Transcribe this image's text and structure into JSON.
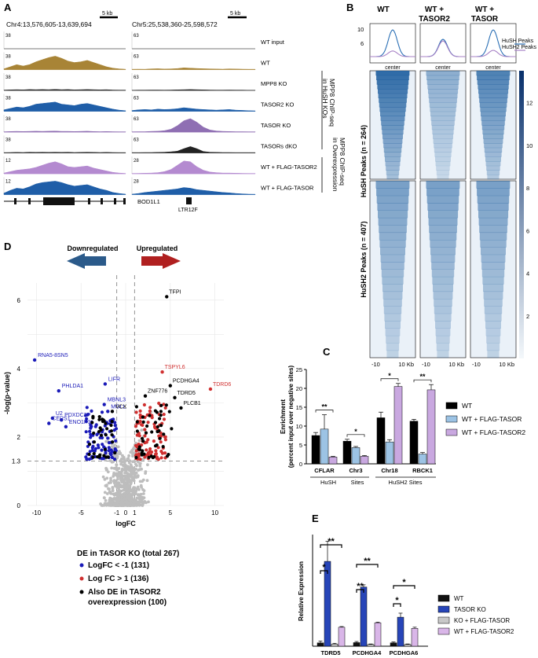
{
  "panel_letters": {
    "a": "A",
    "b": "B",
    "c": "C",
    "d": "D",
    "e": "E"
  },
  "panel_a": {
    "locus1": "Chr4:13,576,605-13,639,694",
    "locus2": "Chr5:25,538,360-25,598,572",
    "scale_label": "5 kb",
    "tracks": [
      {
        "name": "WT input",
        "left_max": "38",
        "right_max": "63",
        "color": "#666666",
        "left": [
          0,
          0,
          0,
          0,
          0,
          0,
          0,
          0,
          0,
          0,
          0,
          0,
          0,
          0,
          0,
          0,
          0,
          0,
          0,
          0
        ],
        "right": [
          0,
          0,
          0,
          0,
          0,
          0,
          0,
          0,
          0,
          0,
          0,
          0,
          0,
          0,
          0,
          0,
          0,
          0,
          0,
          0
        ]
      },
      {
        "name": "WT",
        "left_max": "38",
        "right_max": "63",
        "color": "#a88436",
        "left": [
          0.05,
          0.2,
          0.35,
          0.25,
          0.35,
          0.55,
          0.7,
          0.85,
          0.95,
          0.8,
          0.6,
          0.5,
          0.55,
          0.65,
          0.5,
          0.35,
          0.2,
          0.1,
          0.05,
          0.02
        ],
        "right": [
          0.02,
          0.03,
          0.02,
          0.05,
          0.06,
          0.04,
          0.05,
          0.07,
          0.12,
          0.1,
          0.08,
          0.06,
          0.05,
          0.04,
          0.03,
          0.05,
          0.04,
          0.03,
          0.02,
          0.02
        ]
      },
      {
        "name": "MPP8 KO",
        "left_max": "38",
        "right_max": "63",
        "color": "#222222",
        "left": [
          0.02,
          0.04,
          0.05,
          0.04,
          0.06,
          0.05,
          0.06,
          0.05,
          0.07,
          0.05,
          0.06,
          0.04,
          0.05,
          0.06,
          0.05,
          0.04,
          0.05,
          0.03,
          0.02,
          0.02
        ],
        "right": [
          0.01,
          0.02,
          0.02,
          0.03,
          0.03,
          0.02,
          0.03,
          0.04,
          0.05,
          0.06,
          0.05,
          0.04,
          0.03,
          0.02,
          0.02,
          0.03,
          0.02,
          0.02,
          0.01,
          0.01
        ]
      },
      {
        "name": "TASOR2 KO",
        "left_max": "38",
        "right_max": "63",
        "color": "#1f5ea8",
        "left": [
          0.1,
          0.2,
          0.3,
          0.25,
          0.35,
          0.5,
          0.55,
          0.6,
          0.65,
          0.5,
          0.45,
          0.4,
          0.5,
          0.55,
          0.45,
          0.35,
          0.25,
          0.15,
          0.08,
          0.04
        ],
        "right": [
          0.05,
          0.1,
          0.12,
          0.1,
          0.15,
          0.12,
          0.14,
          0.18,
          0.25,
          0.2,
          0.15,
          0.12,
          0.1,
          0.08,
          0.1,
          0.12,
          0.08,
          0.06,
          0.04,
          0.03
        ]
      },
      {
        "name": "TASOR KO",
        "left_max": "38",
        "right_max": "63",
        "color": "#8f6fb3",
        "left": [
          0.02,
          0.04,
          0.05,
          0.04,
          0.05,
          0.06,
          0.05,
          0.06,
          0.07,
          0.05,
          0.05,
          0.04,
          0.05,
          0.06,
          0.04,
          0.03,
          0.04,
          0.03,
          0.02,
          0.02
        ],
        "right": [
          0.02,
          0.03,
          0.03,
          0.05,
          0.06,
          0.1,
          0.2,
          0.45,
          0.8,
          0.95,
          0.7,
          0.35,
          0.15,
          0.08,
          0.05,
          0.04,
          0.03,
          0.03,
          0.02,
          0.02
        ]
      },
      {
        "name": "TASORs dKO",
        "left_max": "38",
        "right_max": "63",
        "color": "#222222",
        "left": [
          0.02,
          0.03,
          0.04,
          0.03,
          0.05,
          0.04,
          0.05,
          0.04,
          0.05,
          0.04,
          0.05,
          0.03,
          0.04,
          0.05,
          0.04,
          0.03,
          0.04,
          0.03,
          0.02,
          0.02
        ],
        "right": [
          0.02,
          0.02,
          0.03,
          0.03,
          0.04,
          0.05,
          0.08,
          0.12,
          0.3,
          0.45,
          0.3,
          0.1,
          0.05,
          0.04,
          0.03,
          0.03,
          0.02,
          0.02,
          0.02,
          0.02
        ]
      },
      {
        "name": "WT + FLAG-TASOR2",
        "left_max": "12",
        "right_max": "28",
        "color": "#b48ad0",
        "left": [
          0.05,
          0.15,
          0.25,
          0.3,
          0.35,
          0.45,
          0.6,
          0.75,
          0.85,
          0.7,
          0.5,
          0.45,
          0.5,
          0.55,
          0.4,
          0.3,
          0.2,
          0.1,
          0.05,
          0.02
        ],
        "right": [
          0.02,
          0.03,
          0.04,
          0.05,
          0.08,
          0.15,
          0.3,
          0.6,
          0.9,
          0.85,
          0.5,
          0.25,
          0.12,
          0.08,
          0.05,
          0.05,
          0.04,
          0.03,
          0.02,
          0.02
        ]
      },
      {
        "name": "WT + FLAG-TASOR",
        "left_max": "12",
        "right_max": "28",
        "color": "#1f5ea8",
        "left": [
          0.1,
          0.3,
          0.45,
          0.4,
          0.55,
          0.75,
          0.85,
          0.9,
          0.95,
          0.85,
          0.7,
          0.6,
          0.65,
          0.7,
          0.55,
          0.4,
          0.3,
          0.15,
          0.08,
          0.03
        ],
        "right": [
          0.03,
          0.08,
          0.15,
          0.2,
          0.25,
          0.3,
          0.35,
          0.4,
          0.5,
          0.45,
          0.35,
          0.3,
          0.25,
          0.2,
          0.15,
          0.12,
          0.08,
          0.05,
          0.03,
          0.02
        ]
      }
    ],
    "group_label_1": "MPP8 ChIP-seq",
    "group_label_1b": "in HuSH KOs",
    "group_label_2": "MPP8 ChIP-seq",
    "group_label_2b": "in Overexpression",
    "gene_left": "BOD1L1",
    "gene_right": "LTR12F"
  },
  "panel_b": {
    "columns": [
      "WT",
      "WT +",
      "WT +"
    ],
    "columns_line2": [
      "",
      "TASOR2",
      "TASOR"
    ],
    "center_label": "center",
    "legend": [
      "HuSH  Peaks",
      "HuSH2 Peaks"
    ],
    "profile_ticks": [
      "10",
      "6"
    ],
    "row_labels": [
      "HuSH Peaks (n = 264)",
      "HuSH2 Peaks (n = 407)"
    ],
    "x_ticks": [
      "-10",
      "10 Kb"
    ],
    "colorbar_ticks": [
      "12",
      "10",
      "8",
      "6",
      "4",
      "2"
    ],
    "colors": {
      "line1": "#2a6fb5",
      "line2": "#a782c6",
      "heat": "#1c5d9e"
    }
  },
  "chart_data": [
    {
      "type": "bar",
      "title": "",
      "ylabel": "Enrichment",
      "ylabel2": "(percent input over negative sites)",
      "categories": [
        "CFLAR",
        "Chr3",
        "Chr18",
        "RBCK1"
      ],
      "ylim": [
        0,
        25
      ],
      "y_ticks": [
        "0",
        "5",
        "10",
        "15",
        "20",
        "25"
      ],
      "series": [
        {
          "name": "WT",
          "color": "#000000",
          "values": [
            7.5,
            6.0,
            12.2,
            11.3
          ],
          "errors": [
            0.8,
            0.5,
            1.5,
            0.5
          ]
        },
        {
          "name": "WT + FLAG-TASOR",
          "color": "#9cc3e4",
          "values": [
            9.2,
            4.3,
            5.8,
            2.6
          ],
          "errors": [
            3.8,
            0.3,
            0.6,
            0.4
          ]
        },
        {
          "name": "WT + FLAG-TASOR2",
          "color": "#c9a8e0",
          "values": [
            1.8,
            2.0,
            20.5,
            19.6
          ],
          "errors": [
            0.2,
            0.2,
            0.8,
            1.4
          ]
        }
      ],
      "significance": [
        "**",
        "*",
        "*",
        "**"
      ],
      "groups": [
        "HuSH",
        "Sites",
        "HuSH2 Sites"
      ]
    },
    {
      "type": "scatter",
      "title": "",
      "xlabel": "logFC",
      "ylabel": "-log(p-value)",
      "xlim": [
        -11,
        11
      ],
      "ylim": [
        0,
        6.5
      ],
      "x_ticks": [
        "-10",
        "-5",
        "-1",
        "0",
        "1",
        "5",
        "10"
      ],
      "y_ticks": [
        "0",
        "1.3",
        "2",
        "4",
        "6"
      ],
      "threshold_label": "1.3",
      "arrows": [
        "Downregulated",
        "Upregulated"
      ],
      "labeled_points": [
        {
          "label": "TFPI",
          "x": 4.6,
          "y": 6.1,
          "color": "#000000"
        },
        {
          "label": "RNA5-8SN5",
          "x": -10.2,
          "y": 4.25,
          "color": "#1a1ab8"
        },
        {
          "label": "TSPYL6",
          "x": 4.1,
          "y": 3.9,
          "color": "#d03030"
        },
        {
          "label": "LIFR",
          "x": -2.3,
          "y": 3.55,
          "color": "#1a1ab8"
        },
        {
          "label": "PHLDA1",
          "x": -7.5,
          "y": 3.35,
          "color": "#1a1ab8"
        },
        {
          "label": "PCDHGA4",
          "x": 5.0,
          "y": 3.5,
          "color": "#000000"
        },
        {
          "label": "ZNF776",
          "x": 2.2,
          "y": 3.2,
          "color": "#000000"
        },
        {
          "label": "TDRD5",
          "x": 5.5,
          "y": 3.15,
          "color": "#000000"
        },
        {
          "label": "TDRD6",
          "x": 9.5,
          "y": 3.4,
          "color": "#d03030"
        },
        {
          "label": "MBNL3",
          "x": -2.4,
          "y": 2.95,
          "color": "#1a1ab8"
        },
        {
          "label": "PLCB1",
          "x": 6.2,
          "y": 2.85,
          "color": "#000000"
        },
        {
          "label": "MGLL",
          "x": -2.0,
          "y": 2.75,
          "color": "#1a1ab8"
        },
        {
          "label": "VCX",
          "x": -1.5,
          "y": 2.75,
          "color": "#000000"
        },
        {
          "label": "U2",
          "x": -8.2,
          "y": 2.55,
          "color": "#1a1ab8"
        },
        {
          "label": "CERS1",
          "x": -8.6,
          "y": 2.4,
          "color": "#1a1ab8"
        },
        {
          "label": "PDXDC2P",
          "x": -7.2,
          "y": 2.5,
          "color": "#1a1ab8"
        },
        {
          "label": "ENO1P1",
          "x": -6.7,
          "y": 2.3,
          "color": "#1a1ab8"
        }
      ],
      "legend_title": "DE in TASOR KO (total 267)",
      "legend": [
        {
          "label": "LogFC < -1 (131)",
          "color": "#1a1ab8"
        },
        {
          "label": "Log FC > 1 (136)",
          "color": "#d03030"
        },
        {
          "label": "Also DE in TASOR2",
          "label2": "overexpression (100)",
          "color": "#000000"
        }
      ]
    },
    {
      "type": "bar",
      "title": "",
      "ylabel": "Relative Expression",
      "categories": [
        "TDRD5",
        "PCDHGA4",
        "PCDHGA6"
      ],
      "ylim": [
        0,
        50
      ],
      "series": [
        {
          "name": "WT",
          "color": "#111111",
          "values": [
            1.5,
            1.6,
            1.5
          ],
          "errors": [
            0.8,
            0.5,
            0.4
          ]
        },
        {
          "name": "TASOR KO",
          "color": "#2745b8",
          "values": [
            38.0,
            26.5,
            13.0
          ],
          "errors": [
            9.0,
            1.0,
            1.8
          ]
        },
        {
          "name": "KO + FLAG-TASOR",
          "color": "#c8c8c8",
          "values": [
            1.0,
            0.8,
            0.8
          ],
          "errors": [
            0.3,
            0.2,
            0.2
          ]
        },
        {
          "name": "WT + FLAG-TASOR2",
          "color": "#d9b6e8",
          "values": [
            8.5,
            10.5,
            8.0
          ],
          "errors": [
            0.3,
            0.3,
            0.5
          ]
        }
      ],
      "significance": [
        "*",
        "**",
        "**",
        "**",
        "*",
        "*"
      ]
    }
  ]
}
